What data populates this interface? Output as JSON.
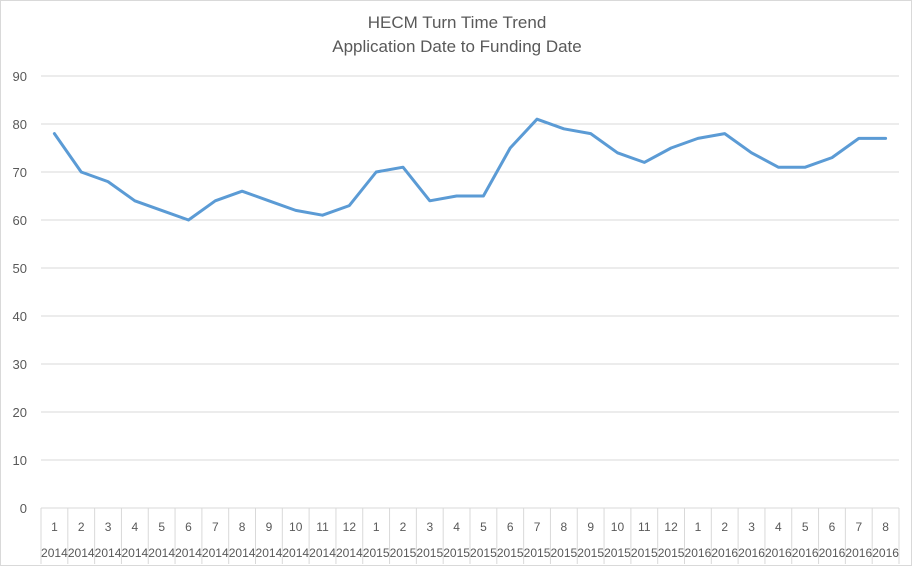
{
  "chart_data": {
    "type": "line",
    "title": "HECM Turn Time Trend",
    "subtitle": "Application Date to Funding Date",
    "xlabel": "",
    "ylabel": "",
    "ylim": [
      0,
      90
    ],
    "yticks": [
      0,
      10,
      20,
      30,
      40,
      50,
      60,
      70,
      80,
      90
    ],
    "grid": true,
    "legend": "none",
    "categories": [
      {
        "month": "1",
        "year": "2014"
      },
      {
        "month": "2",
        "year": "2014"
      },
      {
        "month": "3",
        "year": "2014"
      },
      {
        "month": "4",
        "year": "2014"
      },
      {
        "month": "5",
        "year": "2014"
      },
      {
        "month": "6",
        "year": "2014"
      },
      {
        "month": "7",
        "year": "2014"
      },
      {
        "month": "8",
        "year": "2014"
      },
      {
        "month": "9",
        "year": "2014"
      },
      {
        "month": "10",
        "year": "2014"
      },
      {
        "month": "11",
        "year": "2014"
      },
      {
        "month": "12",
        "year": "2014"
      },
      {
        "month": "1",
        "year": "2015"
      },
      {
        "month": "2",
        "year": "2015"
      },
      {
        "month": "3",
        "year": "2015"
      },
      {
        "month": "4",
        "year": "2015"
      },
      {
        "month": "5",
        "year": "2015"
      },
      {
        "month": "6",
        "year": "2015"
      },
      {
        "month": "7",
        "year": "2015"
      },
      {
        "month": "8",
        "year": "2015"
      },
      {
        "month": "9",
        "year": "2015"
      },
      {
        "month": "10",
        "year": "2015"
      },
      {
        "month": "11",
        "year": "2015"
      },
      {
        "month": "12",
        "year": "2015"
      },
      {
        "month": "1",
        "year": "2016"
      },
      {
        "month": "2",
        "year": "2016"
      },
      {
        "month": "3",
        "year": "2016"
      },
      {
        "month": "4",
        "year": "2016"
      },
      {
        "month": "5",
        "year": "2016"
      },
      {
        "month": "6",
        "year": "2016"
      },
      {
        "month": "7",
        "year": "2016"
      },
      {
        "month": "8",
        "year": "2016"
      }
    ],
    "series": [
      {
        "color": "#5b9bd5",
        "values": [
          78,
          70,
          68,
          64,
          62,
          60,
          64,
          66,
          64,
          62,
          61,
          63,
          70,
          71,
          64,
          65,
          65,
          75,
          81,
          79,
          78,
          74,
          72,
          75,
          77,
          78,
          74,
          71,
          71,
          73,
          77,
          77
        ]
      }
    ]
  }
}
